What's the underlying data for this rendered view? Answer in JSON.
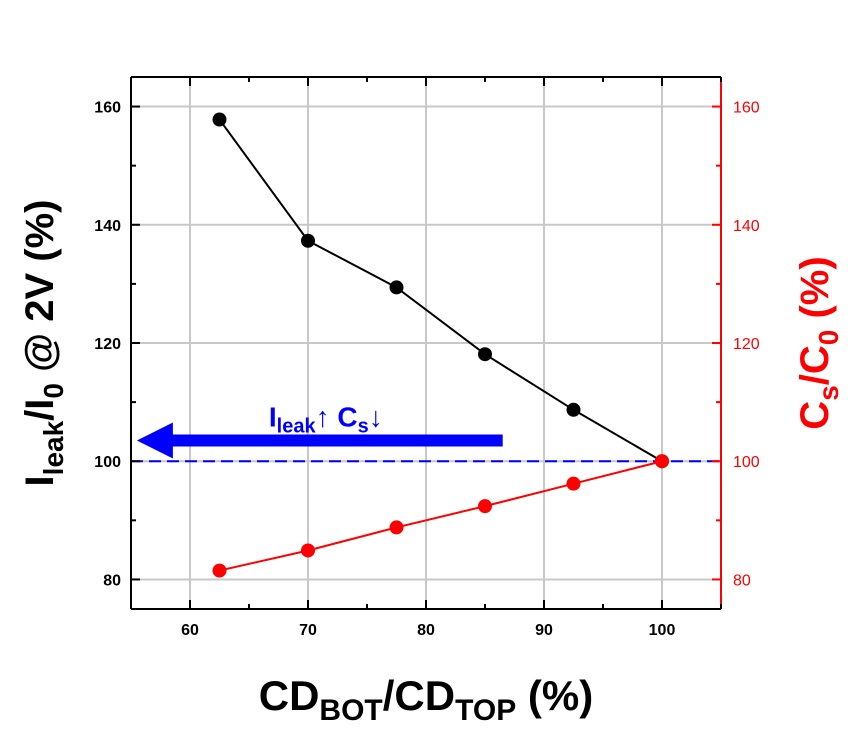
{
  "chart_data": {
    "type": "line",
    "x": [
      62.5,
      70,
      77.5,
      85,
      92.5,
      100
    ],
    "xlim": [
      55,
      105
    ],
    "xticks": [
      60,
      70,
      80,
      90,
      100
    ],
    "xlabel": {
      "main": "CD",
      "sub1": "BOT",
      "mid": "/CD",
      "sub2": "TOP",
      "tail": " (%)"
    },
    "ylim": [
      75,
      165
    ],
    "yticks": [
      80,
      100,
      120,
      140,
      160
    ],
    "y2lim": [
      75,
      165
    ],
    "y2ticks": [
      80,
      100,
      120,
      140,
      160
    ],
    "ylabel": {
      "main": "I",
      "sub1": "leak",
      "mid": "/I",
      "sub2": "0",
      "tail": " @ 2V (%)"
    },
    "y2label": {
      "main": "C",
      "sub1": "s",
      "mid": "/C",
      "sub2": "0",
      "tail": " (%)"
    },
    "grid": true,
    "series": [
      {
        "axis": "left",
        "color": "#000000",
        "values": [
          157.8,
          137.3,
          129.4,
          118.1,
          108.7,
          100.0
        ]
      },
      {
        "axis": "right",
        "color": "#ff0000",
        "values": [
          81.5,
          84.9,
          88.8,
          92.4,
          96.2,
          100.0
        ]
      }
    ],
    "reference_line": {
      "y": 100,
      "color": "#0000ff",
      "style": "dashed"
    },
    "annotation": {
      "text_main1": "I",
      "text_sub1": "leak",
      "text_arrow1": "↑ C",
      "text_sub2": "s",
      "text_arrow2": "↓",
      "color": "#0000ff",
      "arrow_from_x": 86.5,
      "arrow_to_x": 55.5,
      "arrow_y": 103.5
    }
  }
}
